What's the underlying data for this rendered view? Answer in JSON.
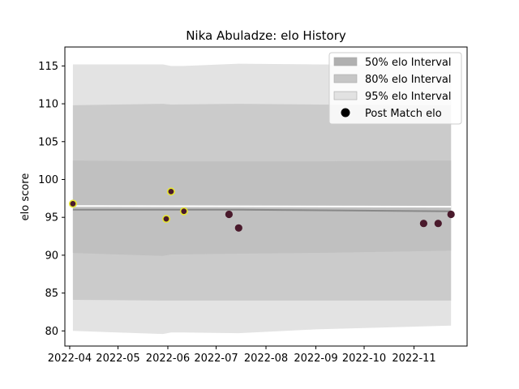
{
  "chart_data": {
    "type": "scatter",
    "title": "Nika Abuladze: elo History",
    "ylabel": "elo score",
    "xlabel": "",
    "xlim": [
      "2022-03-29",
      "2022-12-04"
    ],
    "ylim": [
      78,
      117.5
    ],
    "x_ticks": [
      "2022-04",
      "2022-05",
      "2022-06",
      "2022-07",
      "2022-08",
      "2022-09",
      "2022-10",
      "2022-11"
    ],
    "y_ticks": [
      80,
      85,
      90,
      95,
      100,
      105,
      110,
      115
    ],
    "grid": false,
    "legend_position": "top-right",
    "legend": [
      {
        "label": "50% elo Interval",
        "kind": "patch",
        "color": "#b0b0b0"
      },
      {
        "label": "80% elo Interval",
        "kind": "patch",
        "color": "#c6c6c6"
      },
      {
        "label": "95% elo Interval",
        "kind": "patch",
        "color": "#e2e2e2"
      },
      {
        "label": "Post Match elo",
        "kind": "marker",
        "color": "#000000"
      }
    ],
    "bands": [
      {
        "name": "95% elo Interval",
        "color": "#e3e3e3",
        "x": [
          "2022-04-03",
          "2022-05-29",
          "2022-06-03",
          "2022-06-11",
          "2022-07-15",
          "2022-09-01",
          "2022-11-24"
        ],
        "lower": [
          80.0,
          79.6,
          79.8,
          79.8,
          79.7,
          80.2,
          80.7
        ],
        "upper": [
          115.2,
          115.2,
          115.0,
          115.0,
          115.3,
          115.2,
          115.1
        ]
      },
      {
        "name": "80% elo Interval",
        "color": "#cbcbcb",
        "x": [
          "2022-04-03",
          "2022-05-29",
          "2022-06-03",
          "2022-07-15",
          "2022-09-01",
          "2022-11-24"
        ],
        "lower": [
          84.1,
          84.0,
          84.0,
          84.0,
          84.0,
          84.0
        ],
        "upper": [
          109.8,
          110.0,
          109.9,
          110.0,
          109.9,
          109.8
        ]
      },
      {
        "name": "50% elo Interval",
        "color": "#c0c0c0",
        "x": [
          "2022-04-03",
          "2022-05-29",
          "2022-06-03",
          "2022-07-15",
          "2022-09-01",
          "2022-11-24"
        ],
        "lower": [
          90.3,
          89.9,
          90.1,
          90.2,
          90.3,
          90.6
        ],
        "upper": [
          102.5,
          102.4,
          102.4,
          102.4,
          102.4,
          102.5
        ]
      }
    ],
    "median_line": {
      "color": "#888888",
      "x": [
        "2022-04-03",
        "2022-07-15",
        "2022-11-24"
      ],
      "y": [
        96.0,
        96.0,
        95.8
      ]
    },
    "mean_line": {
      "color": "#ffffff",
      "x": [
        "2022-04-03",
        "2022-11-24"
      ],
      "y": [
        96.5,
        96.4
      ]
    },
    "points": [
      {
        "x": "2022-04-03",
        "y": 96.8,
        "highlight": true
      },
      {
        "x": "2022-05-31",
        "y": 94.8,
        "highlight": true
      },
      {
        "x": "2022-06-03",
        "y": 98.4,
        "highlight": true
      },
      {
        "x": "2022-06-11",
        "y": 95.8,
        "highlight": true
      },
      {
        "x": "2022-07-09",
        "y": 95.4,
        "highlight": false
      },
      {
        "x": "2022-07-15",
        "y": 93.6,
        "highlight": false
      },
      {
        "x": "2022-11-07",
        "y": 94.2,
        "highlight": false
      },
      {
        "x": "2022-11-16",
        "y": 94.2,
        "highlight": false
      },
      {
        "x": "2022-11-24",
        "y": 95.4,
        "highlight": false
      }
    ],
    "point_color": "#4a1a2c",
    "highlight_edge_color": "#e6e632"
  }
}
